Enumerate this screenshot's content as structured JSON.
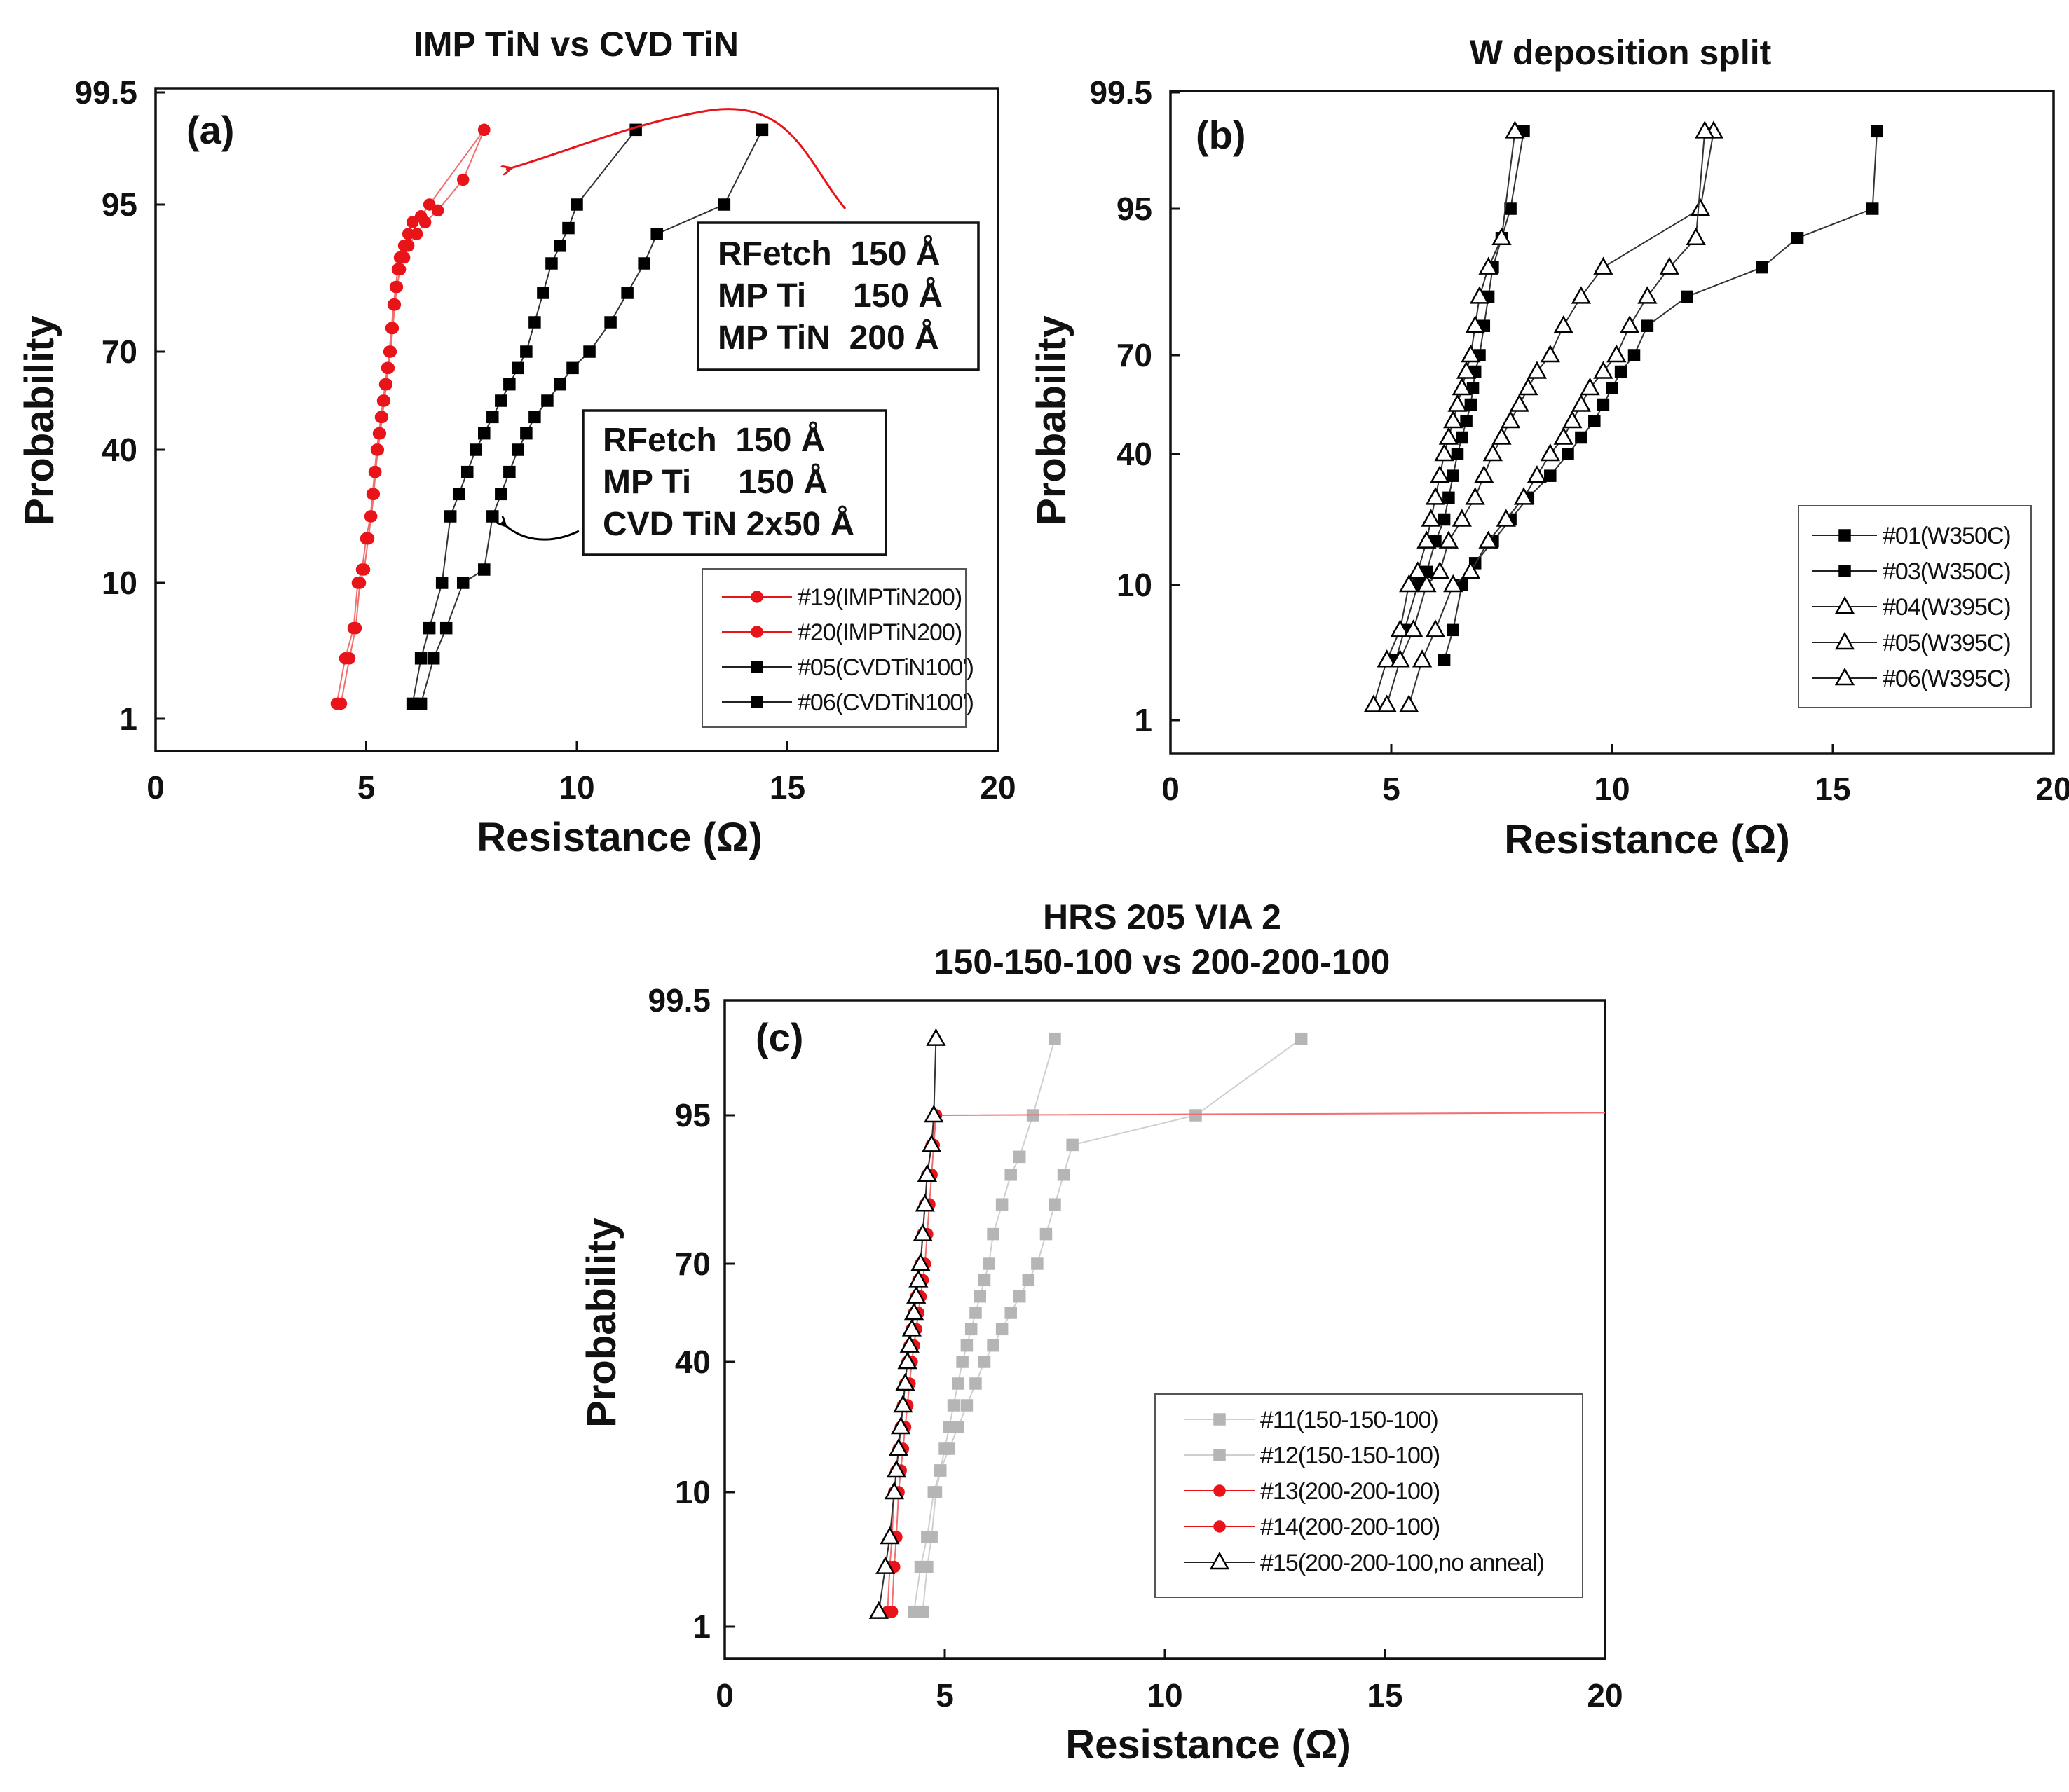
{
  "chart_data": [
    {
      "id": "a",
      "type": "scatter",
      "panel_label": "(a)",
      "title": "IMP TiN vs CVD TiN",
      "xlabel": "Resistance (Ω)",
      "ylabel": "Probability",
      "xlim": [
        0,
        20
      ],
      "xticks": [
        "0",
        "5",
        "10",
        "15",
        "20"
      ],
      "ytick_labels": [
        "99.5",
        "95",
        "70",
        "40",
        "10",
        "1"
      ],
      "annotations": [
        [
          "RFetch  150 Å",
          "MP Ti     150 Å",
          "MP TiN  200 Å"
        ],
        [
          "RFetch  150 Å",
          "MP Ti     150 Å",
          "CVD TiN 2x50 Å"
        ]
      ],
      "series": [
        {
          "name": "#19(IMPTiN200)",
          "marker": "circle",
          "color": "#e8141a",
          "x": [
            4.3,
            4.5,
            4.7,
            4.8,
            4.9,
            5.0,
            5.1,
            5.15,
            5.2,
            5.25,
            5.3,
            5.35,
            5.4,
            5.45,
            5.5,
            5.55,
            5.6,
            5.65,
            5.7,
            5.75,
            5.8,
            5.9,
            6.0,
            6.1,
            6.3,
            6.5,
            7.8
          ],
          "y": [
            2,
            5,
            7,
            10,
            13,
            20,
            25,
            30,
            35,
            40,
            45,
            50,
            55,
            60,
            65,
            70,
            74,
            78,
            81,
            84,
            86,
            88,
            90,
            92,
            93,
            95,
            98
          ]
        },
        {
          "name": "#20(IMPTiN200)",
          "marker": "circle",
          "color": "#e8141a",
          "x": [
            4.4,
            4.6,
            4.75,
            4.85,
            4.95,
            5.05,
            5.12,
            5.18,
            5.22,
            5.28,
            5.33,
            5.38,
            5.43,
            5.48,
            5.53,
            5.58,
            5.63,
            5.68,
            5.73,
            5.8,
            5.9,
            6.0,
            6.2,
            6.4,
            6.7,
            7.3,
            7.8
          ],
          "y": [
            2,
            5,
            7,
            10,
            13,
            20,
            25,
            30,
            35,
            40,
            45,
            50,
            55,
            60,
            65,
            70,
            74,
            78,
            81,
            84,
            86,
            88,
            90,
            92,
            94,
            96,
            98
          ]
        },
        {
          "name": "#05(CVDTiN100')",
          "marker": "square",
          "color": "#000000",
          "x": [
            6.1,
            6.3,
            6.5,
            6.8,
            7.0,
            7.2,
            7.4,
            7.6,
            7.8,
            8.0,
            8.2,
            8.4,
            8.6,
            8.8,
            9.0,
            9.2,
            9.4,
            9.6,
            9.8,
            10.0,
            11.4
          ],
          "y": [
            2,
            5,
            7,
            10,
            25,
            30,
            35,
            40,
            45,
            50,
            55,
            60,
            65,
            70,
            75,
            80,
            85,
            88,
            91,
            95,
            98
          ]
        },
        {
          "name": "#06(CVDTiN100')",
          "marker": "square",
          "color": "#000000",
          "x": [
            6.3,
            6.6,
            6.9,
            7.3,
            7.8,
            8.0,
            8.2,
            8.4,
            8.6,
            8.8,
            9.0,
            9.3,
            9.6,
            9.9,
            10.3,
            10.8,
            11.2,
            11.6,
            11.9,
            13.5,
            14.4
          ],
          "y": [
            2,
            5,
            7,
            10,
            13,
            25,
            30,
            35,
            40,
            45,
            50,
            55,
            60,
            65,
            70,
            75,
            80,
            85,
            90,
            95,
            98
          ]
        }
      ]
    },
    {
      "id": "b",
      "type": "scatter",
      "panel_label": "(b)",
      "title": "W deposition split",
      "xlabel": "Resistance (Ω)",
      "ylabel": "Probability",
      "xlim": [
        0,
        20
      ],
      "xticks": [
        "0",
        "5",
        "10",
        "15",
        "20"
      ],
      "ytick_labels": [
        "99.5",
        "95",
        "70",
        "40",
        "10",
        "1"
      ],
      "series": [
        {
          "name": "#01(W350C)",
          "marker": "square",
          "color": "#000000",
          "x": [
            5.1,
            5.3,
            5.6,
            5.8,
            6.0,
            6.2,
            6.3,
            6.4,
            6.5,
            6.6,
            6.7,
            6.8,
            6.85,
            6.9,
            7.0,
            7.1,
            7.2,
            7.3,
            7.5,
            7.7,
            8.0
          ],
          "y": [
            5,
            7,
            10,
            13,
            20,
            25,
            30,
            35,
            40,
            45,
            50,
            55,
            60,
            65,
            70,
            75,
            80,
            85,
            90,
            95,
            98
          ]
        },
        {
          "name": "#03(W350C)",
          "marker": "square",
          "color": "#000000",
          "x": [
            6.2,
            6.4,
            6.6,
            6.9,
            7.3,
            7.7,
            8.1,
            8.6,
            9.0,
            9.3,
            9.6,
            9.8,
            10.0,
            10.2,
            10.5,
            10.8,
            11.7,
            13.4,
            14.2,
            15.9,
            16.0
          ],
          "y": [
            5,
            7,
            10,
            15,
            20,
            25,
            30,
            35,
            40,
            45,
            50,
            55,
            60,
            65,
            70,
            75,
            80,
            85,
            90,
            95,
            98
          ]
        },
        {
          "name": "#04(W395C)",
          "marker": "triangle",
          "color": "#000000",
          "x": [
            4.6,
            4.9,
            5.2,
            5.4,
            5.6,
            5.8,
            5.9,
            6.0,
            6.1,
            6.2,
            6.3,
            6.4,
            6.5,
            6.6,
            6.7,
            6.8,
            6.9,
            7.0,
            7.2,
            7.5,
            7.8
          ],
          "y": [
            2,
            5,
            7,
            10,
            13,
            20,
            25,
            30,
            35,
            40,
            45,
            50,
            55,
            60,
            65,
            70,
            75,
            80,
            85,
            90,
            98
          ]
        },
        {
          "name": "#05(W395C)",
          "marker": "triangle",
          "color": "#000000",
          "x": [
            4.9,
            5.2,
            5.5,
            5.8,
            6.1,
            6.3,
            6.6,
            6.9,
            7.1,
            7.3,
            7.5,
            7.7,
            7.9,
            8.1,
            8.3,
            8.6,
            8.9,
            9.3,
            9.8,
            12.0,
            12.3
          ],
          "y": [
            2,
            5,
            7,
            10,
            13,
            20,
            25,
            30,
            35,
            40,
            45,
            50,
            55,
            60,
            65,
            70,
            75,
            80,
            85,
            95,
            98
          ]
        },
        {
          "name": "#06(W395C)",
          "marker": "triangle",
          "color": "#000000",
          "x": [
            5.4,
            5.7,
            6.0,
            6.4,
            6.8,
            7.2,
            7.6,
            8.0,
            8.3,
            8.6,
            8.9,
            9.1,
            9.3,
            9.5,
            9.8,
            10.1,
            10.4,
            10.8,
            11.3,
            11.9,
            12.1
          ],
          "y": [
            2,
            5,
            7,
            10,
            13,
            20,
            25,
            30,
            35,
            40,
            45,
            50,
            55,
            60,
            65,
            70,
            75,
            80,
            85,
            90,
            98
          ]
        }
      ]
    },
    {
      "id": "c",
      "type": "scatter",
      "panel_label": "(c)",
      "title": "HRS 205 VIA 2",
      "subtitle": "150-150-100 vs 200-200-100",
      "xlabel": "Resistance (Ω)",
      "ylabel": "Probability",
      "xlim": [
        0,
        20
      ],
      "xticks": [
        "0",
        "5",
        "10",
        "15",
        "20"
      ],
      "ytick_labels": [
        "99.5",
        "95",
        "70",
        "40",
        "10",
        "1"
      ],
      "series": [
        {
          "name": "#11(150-150-100)",
          "marker": "square",
          "color": "#b5b5b5",
          "x": [
            4.5,
            4.6,
            4.7,
            4.8,
            4.9,
            5.0,
            5.1,
            5.2,
            5.3,
            5.4,
            5.5,
            5.6,
            5.7,
            5.8,
            5.9,
            6.0,
            6.1,
            6.3,
            6.5,
            6.7,
            7.0,
            7.5
          ],
          "y": [
            2,
            5,
            7,
            10,
            15,
            20,
            25,
            30,
            35,
            40,
            45,
            50,
            55,
            60,
            65,
            70,
            75,
            80,
            85,
            88,
            95,
            98
          ]
        },
        {
          "name": "#12(150-150-100)",
          "marker": "square",
          "color": "#b5b5b5",
          "x": [
            4.3,
            4.45,
            4.6,
            4.75,
            4.9,
            5.1,
            5.3,
            5.5,
            5.7,
            5.9,
            6.1,
            6.3,
            6.5,
            6.7,
            6.9,
            7.1,
            7.3,
            7.5,
            7.7,
            7.9,
            10.7,
            13.1
          ],
          "y": [
            2,
            5,
            7,
            10,
            15,
            20,
            25,
            30,
            35,
            40,
            45,
            50,
            55,
            60,
            65,
            70,
            75,
            80,
            85,
            90,
            95,
            98
          ]
        },
        {
          "name": "#13(200-200-100)",
          "marker": "circle",
          "color": "#e8141a",
          "x": [
            3.8,
            3.85,
            3.9,
            3.95,
            4.0,
            4.05,
            4.1,
            4.15,
            4.2,
            4.25,
            4.3,
            4.35,
            4.4,
            4.45,
            4.5,
            4.55,
            4.6,
            4.65,
            4.7,
            4.75,
            4.8
          ],
          "y": [
            2,
            5,
            7,
            10,
            15,
            20,
            25,
            30,
            35,
            40,
            45,
            50,
            55,
            60,
            65,
            70,
            75,
            80,
            85,
            90,
            95
          ]
        },
        {
          "name": "#14(200-200-100)",
          "marker": "circle",
          "color": "#e8141a",
          "x": [
            3.7,
            3.75,
            3.8,
            3.85,
            3.9,
            3.95,
            4.0,
            4.05,
            4.1,
            4.15,
            4.2,
            4.25,
            4.3,
            4.35,
            4.4,
            4.45,
            4.5,
            4.55,
            4.6,
            4.7,
            4.8,
            20.0
          ],
          "y": [
            2,
            5,
            7,
            10,
            15,
            20,
            25,
            30,
            35,
            40,
            45,
            50,
            55,
            60,
            65,
            70,
            75,
            80,
            85,
            90,
            95,
            95.1
          ]
        },
        {
          "name": "#15(200-200-100,no anneal)",
          "marker": "triangle",
          "color": "#000000",
          "x": [
            3.5,
            3.65,
            3.75,
            3.85,
            3.9,
            3.95,
            4.0,
            4.05,
            4.1,
            4.15,
            4.2,
            4.25,
            4.3,
            4.35,
            4.4,
            4.45,
            4.5,
            4.55,
            4.6,
            4.7,
            4.75,
            4.8
          ],
          "y": [
            2,
            5,
            7,
            10,
            15,
            20,
            25,
            30,
            35,
            40,
            45,
            50,
            55,
            60,
            65,
            70,
            75,
            80,
            85,
            90,
            95,
            98
          ]
        }
      ]
    }
  ]
}
